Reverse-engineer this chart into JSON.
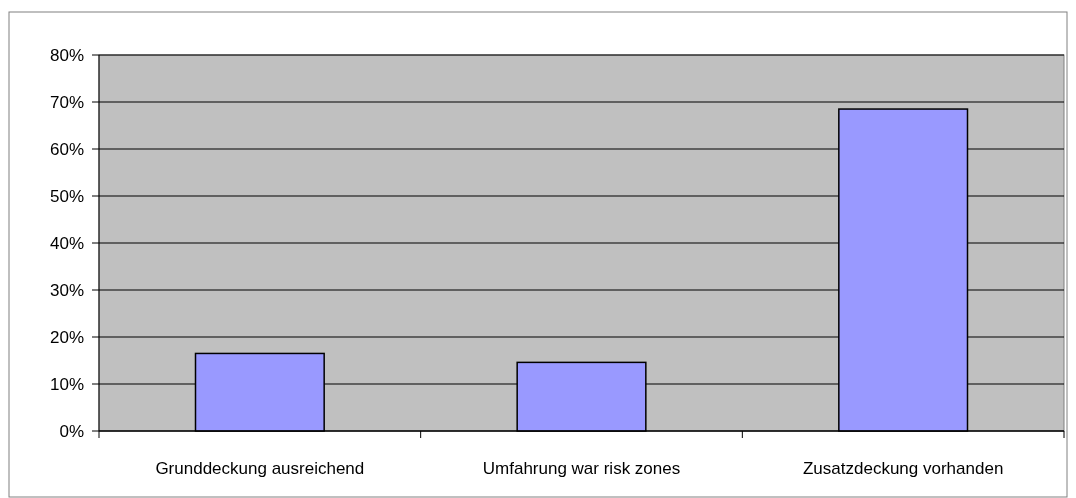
{
  "chart_data": {
    "type": "bar",
    "categories": [
      "Grunddeckung ausreichend",
      "Umfahrung war risk zones",
      "Zusatzdeckung vorhanden"
    ],
    "values": [
      16.5,
      14.6,
      68.5
    ],
    "color": "#9999ff",
    "ylim": [
      0,
      80
    ],
    "yticks": [
      {
        "value": 0,
        "label": "0%"
      },
      {
        "value": 10,
        "label": "10%"
      },
      {
        "value": 20,
        "label": "20%"
      },
      {
        "value": 30,
        "label": "30%"
      },
      {
        "value": 40,
        "label": "40%"
      },
      {
        "value": 50,
        "label": "50%"
      },
      {
        "value": 60,
        "label": "60%"
      },
      {
        "value": 70,
        "label": "70%"
      },
      {
        "value": 80,
        "label": "80%"
      }
    ],
    "grid": "y"
  }
}
